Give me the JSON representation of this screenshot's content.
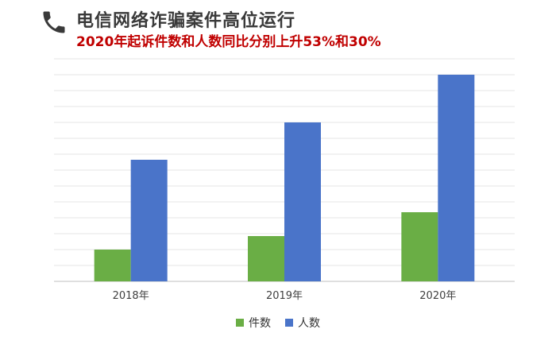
{
  "header": {
    "icon": "phone-icon",
    "title": "电信网络诈骗案件高位运行",
    "subtitle": "2020年起诉件数和人数同比分别上升53%和30%"
  },
  "colors": {
    "series_1": "#6aae45",
    "series_2": "#4a74c9",
    "title": "#3a3a3a",
    "subtitle": "#c00000"
  },
  "chart_data": {
    "type": "bar",
    "categories": [
      "2018年",
      "2019年",
      "2020年"
    ],
    "series": [
      {
        "name": "件数",
        "values": [
          40,
          57,
          87
        ]
      },
      {
        "name": "人数",
        "values": [
          153,
          200,
          260
        ]
      }
    ],
    "ylim": [
      0,
      280
    ],
    "grid": true,
    "legend_position": "bottom"
  }
}
